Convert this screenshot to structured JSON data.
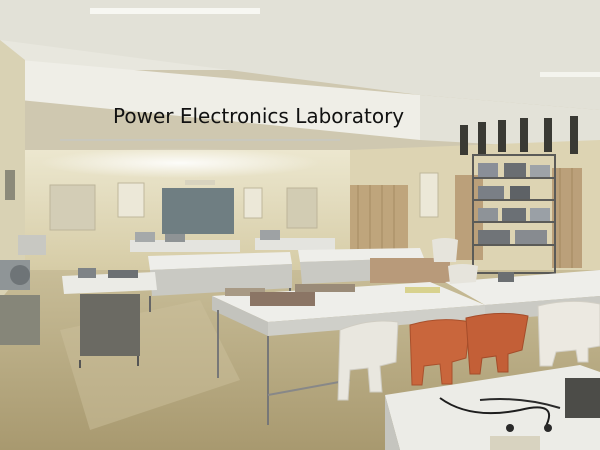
{
  "caption": {
    "text": "Power Electronics Laboratory"
  },
  "palette": {
    "ceiling": "#e6e4d8",
    "wall": "#ddd5b6",
    "floor": "#b9ab86",
    "bench_top": "#eeeeea",
    "bench_side": "#c9c9c3",
    "chair_white": "#e9e7df",
    "chair_orange": "#c9663c",
    "curtain": "#bfa57c",
    "board": "#7e8a8a"
  }
}
